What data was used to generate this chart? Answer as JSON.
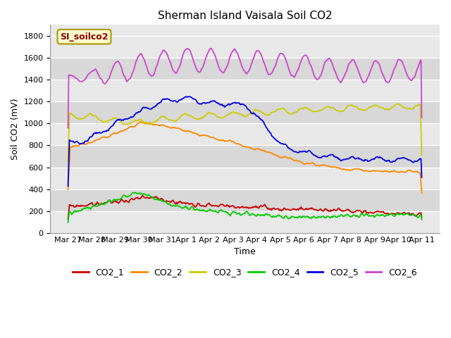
{
  "title": "Sherman Island Vaisala Soil CO2",
  "xlabel": "Time",
  "ylabel": "Soil CO2 (mV)",
  "legend_label": "SI_soilco2",
  "ylim": [
    0,
    1900
  ],
  "yticks": [
    0,
    200,
    400,
    600,
    800,
    1000,
    1200,
    1400,
    1600,
    1800
  ],
  "x_tick_labels": [
    "Mar 27",
    "Mar 28",
    "Mar 29",
    "Mar 30",
    "Mar 31",
    "Apr 1",
    "Apr 2",
    "Apr 3",
    "Apr 4",
    "Apr 5",
    "Apr 6",
    "Apr 7",
    "Apr 8",
    "Apr 9",
    "Apr 10",
    "Apr 11"
  ],
  "colors": {
    "CO2_1": "#cc0000",
    "CO2_2": "#ff8800",
    "CO2_3": "#cccc00",
    "CO2_4": "#00cc00",
    "CO2_5": "#0000dd",
    "CO2_6": "#cc44cc"
  },
  "stripe_colors": [
    "#e8e8e8",
    "#d8d8d8"
  ],
  "bg_color": "#ffffff",
  "plot_bg": "#e8e8e8",
  "n_points": 500
}
